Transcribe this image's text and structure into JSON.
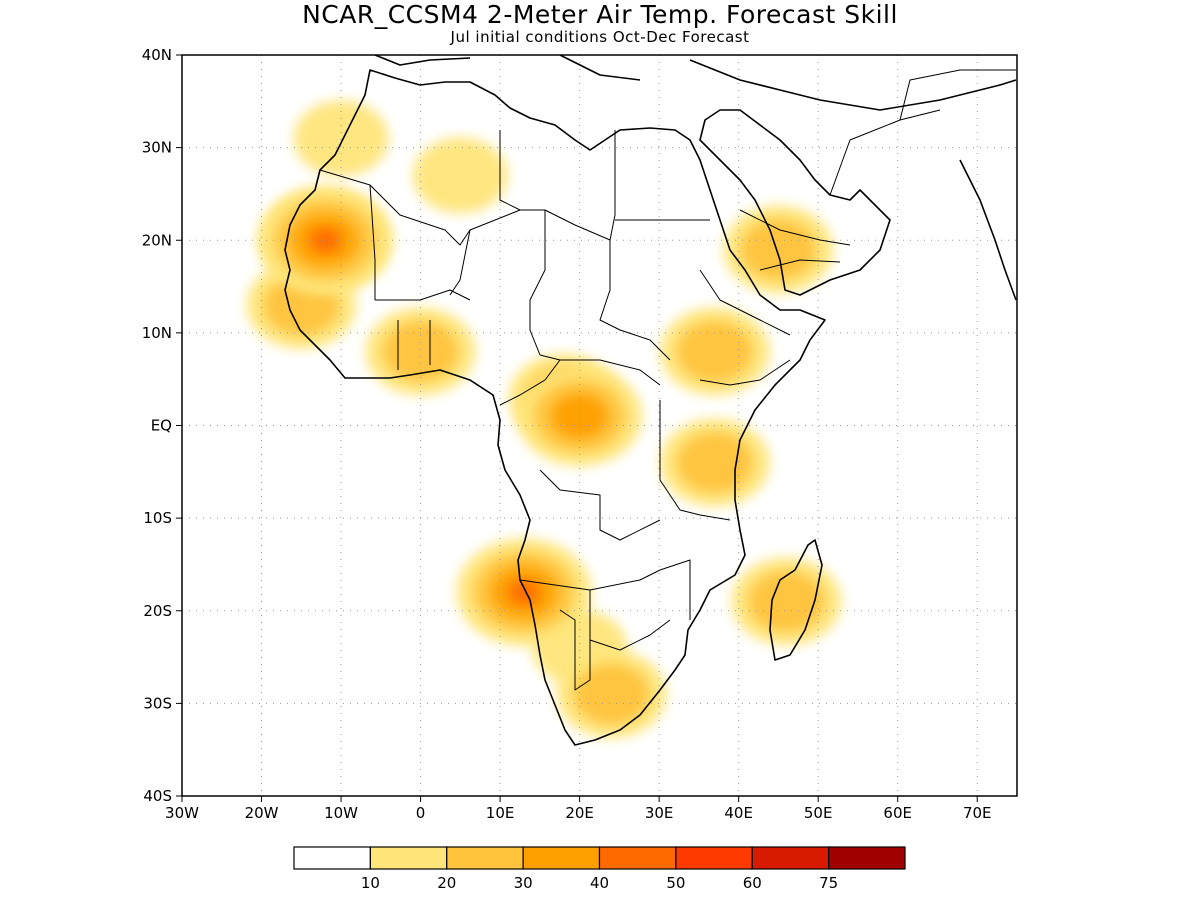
{
  "title": "NCAR_CCSM4 2-Meter Air Temp. Forecast Skill",
  "subtitle": "Jul initial conditions  Oct-Dec Forecast",
  "chart_data": {
    "type": "heatmap",
    "projection": "lat-lon",
    "lon_range": [
      -30,
      75
    ],
    "lat_range": [
      -40,
      40
    ],
    "x_ticks": [
      "30W",
      "20W",
      "10W",
      "0",
      "10E",
      "20E",
      "30E",
      "40E",
      "50E",
      "60E",
      "70E"
    ],
    "y_ticks": [
      "40N",
      "30N",
      "20N",
      "10N",
      "EQ",
      "10S",
      "20S",
      "30S",
      "40S"
    ],
    "grid": "dotted",
    "colorbar": {
      "orientation": "horizontal",
      "placement": "bottom",
      "tick_labels": [
        "10",
        "20",
        "30",
        "40",
        "50",
        "60",
        "75"
      ],
      "colors": [
        "#ffffff",
        "#ffe57a",
        "#ffc33c",
        "#ff9f00",
        "#ff6a00",
        "#ff3a00",
        "#d81b00",
        "#a00000"
      ]
    },
    "skill_regions": [
      {
        "region": "Northwest Africa / Morocco-Algeria",
        "lon": -10,
        "lat": 31,
        "level": 1
      },
      {
        "region": "Algeria Sahara",
        "lon": 5,
        "lat": 27,
        "level": 1
      },
      {
        "region": "Mauritania",
        "lon": -12,
        "lat": 20,
        "level": 3
      },
      {
        "region": "Mauritania core",
        "lon": -12,
        "lat": 20,
        "level": 4
      },
      {
        "region": "Senegal-Guinea coast",
        "lon": -15,
        "lat": 13,
        "level": 2
      },
      {
        "region": "Ghana-Togo",
        "lon": 0,
        "lat": 8,
        "level": 2
      },
      {
        "region": "Central Africa (Cameroon-CAR)",
        "lon": 18,
        "lat": 3,
        "level": 2
      },
      {
        "region": "Congo-Gabon",
        "lon": 20,
        "lat": 1,
        "level": 3
      },
      {
        "region": "Ethiopia",
        "lon": 37,
        "lat": 8,
        "level": 2
      },
      {
        "region": "Kenya-Tanzania",
        "lon": 37,
        "lat": -4,
        "level": 2
      },
      {
        "region": "Saudi Arabia-Yemen",
        "lon": 45,
        "lat": 19,
        "level": 2
      },
      {
        "region": "Madagascar",
        "lon": 46,
        "lat": -19,
        "level": 2
      },
      {
        "region": "Namibia-Botswana",
        "lon": 20,
        "lat": -24,
        "level": 1
      },
      {
        "region": "South Africa",
        "lon": 24,
        "lat": -29,
        "level": 2
      },
      {
        "region": "Angola coast",
        "lon": 13,
        "lat": -18,
        "level": 4
      }
    ]
  }
}
